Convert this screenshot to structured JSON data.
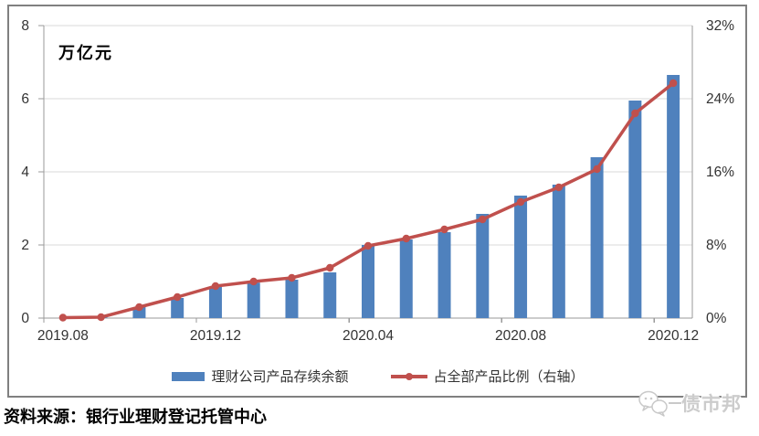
{
  "chart": {
    "unit_label": "万亿元",
    "source_note": "资料来源：银行业理财登记托管中心",
    "watermark_text": "债市邦",
    "legend": [
      {
        "label": "理财公司产品存续余额",
        "type": "bar",
        "color": "#4F81BD"
      },
      {
        "label": "占全部产品比例（右轴）",
        "type": "line",
        "color": "#C0504D"
      }
    ]
  },
  "chart_data": {
    "type": "combo-bar-line",
    "categories": [
      "2019.08",
      "2019.09",
      "2019.10",
      "2019.11",
      "2019.12",
      "2020.01",
      "2020.02",
      "2020.03",
      "2020.04",
      "2020.05",
      "2020.06",
      "2020.07",
      "2020.08",
      "2020.09",
      "2020.10",
      "2020.11",
      "2020.12"
    ],
    "x_tick_label_indices": [
      0,
      4,
      8,
      12,
      16
    ],
    "x_tick_labels": [
      "2019.08",
      "2019.12",
      "2020.04",
      "2020.08",
      "2020.12"
    ],
    "series": [
      {
        "name": "理财公司产品存续余额",
        "type": "bar",
        "axis": "left",
        "color": "#4F81BD",
        "values": [
          0,
          0.02,
          0.3,
          0.55,
          0.85,
          0.97,
          1.05,
          1.25,
          2.0,
          2.15,
          2.35,
          2.85,
          3.35,
          3.65,
          4.4,
          5.95,
          6.65
        ]
      },
      {
        "name": "占全部产品比例（右轴）",
        "type": "line",
        "axis": "right",
        "color": "#C0504D",
        "values": [
          0.05,
          0.1,
          1.2,
          2.3,
          3.5,
          4.0,
          4.4,
          5.5,
          7.9,
          8.7,
          9.7,
          10.8,
          12.7,
          14.3,
          16.3,
          22.4,
          25.7
        ]
      }
    ],
    "left_axis": {
      "title": "万亿元",
      "min": 0,
      "max": 8,
      "ticks": [
        0,
        2,
        4,
        6,
        8
      ]
    },
    "right_axis": {
      "min": 0,
      "max": 32,
      "ticks": [
        0,
        8,
        16,
        24,
        32
      ],
      "tick_suffix": "%"
    },
    "grid": true,
    "legend_position": "bottom",
    "colors": {
      "grid": "#D9D9D9",
      "axis": "#9A9A9A",
      "tick_text": "#333333"
    }
  }
}
